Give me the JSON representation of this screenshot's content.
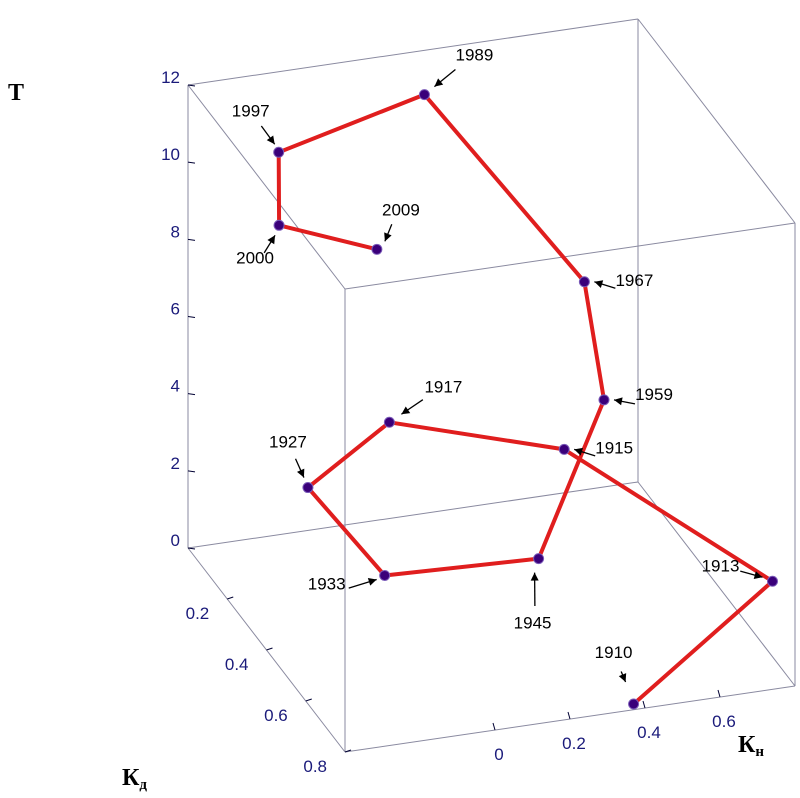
{
  "chart_data": {
    "type": "line3d",
    "series": [
      {
        "points": [
          {
            "label": "1910",
            "Kn": 0.38,
            "Kd": 0.78,
            "T": 0
          },
          {
            "label": "1913",
            "Kn": 0.74,
            "Kd": 0.8,
            "T": 2.8
          },
          {
            "label": "1915",
            "Kn": 0.42,
            "Kd": 0.35,
            "T": 3.7
          },
          {
            "label": "1917",
            "Kn": -0.02,
            "Kd": 0.3,
            "T": 4.7
          },
          {
            "label": "1927",
            "Kn": -0.3,
            "Kd": 0.42,
            "T": 4.2
          },
          {
            "label": "1933",
            "Kn": -0.2,
            "Kd": 0.62,
            "T": 3.1
          },
          {
            "label": "1945",
            "Kn": 0.2,
            "Kd": 0.64,
            "T": 3.1
          },
          {
            "label": "1959",
            "Kn": 0.5,
            "Kd": 0.4,
            "T": 5.2
          },
          {
            "label": "1967",
            "Kn": 0.5,
            "Kd": 0.3,
            "T": 7.6
          },
          {
            "label": "1989",
            "Kn": 0.22,
            "Kd": 0.02,
            "T": 11.0
          },
          {
            "label": "1997",
            "Kn": -0.2,
            "Kd": 0.08,
            "T": 10.5
          },
          {
            "label": "2000",
            "Kn": -0.22,
            "Kd": 0.12,
            "T": 8.9
          },
          {
            "label": "2009",
            "Kn": 0.02,
            "Kd": 0.16,
            "T": 8.2
          }
        ]
      }
    ],
    "axes": {
      "T": {
        "label": "Т",
        "ticks": [
          "0",
          "2",
          "4",
          "6",
          "8",
          "10",
          "12"
        ]
      },
      "Kd": {
        "label": "К",
        "sub": "д",
        "ticks": [
          "0.2",
          "0.4",
          "0.6",
          "0.8"
        ]
      },
      "Kn": {
        "label": "К",
        "sub": "н",
        "ticks": [
          "0",
          "0.2",
          "0.4",
          "0.6"
        ]
      }
    },
    "box": "on",
    "grid": "off"
  },
  "colors": {
    "series": "#e01e1e",
    "marker": "#3a007a",
    "ticklabels": "#1a1a7a"
  }
}
